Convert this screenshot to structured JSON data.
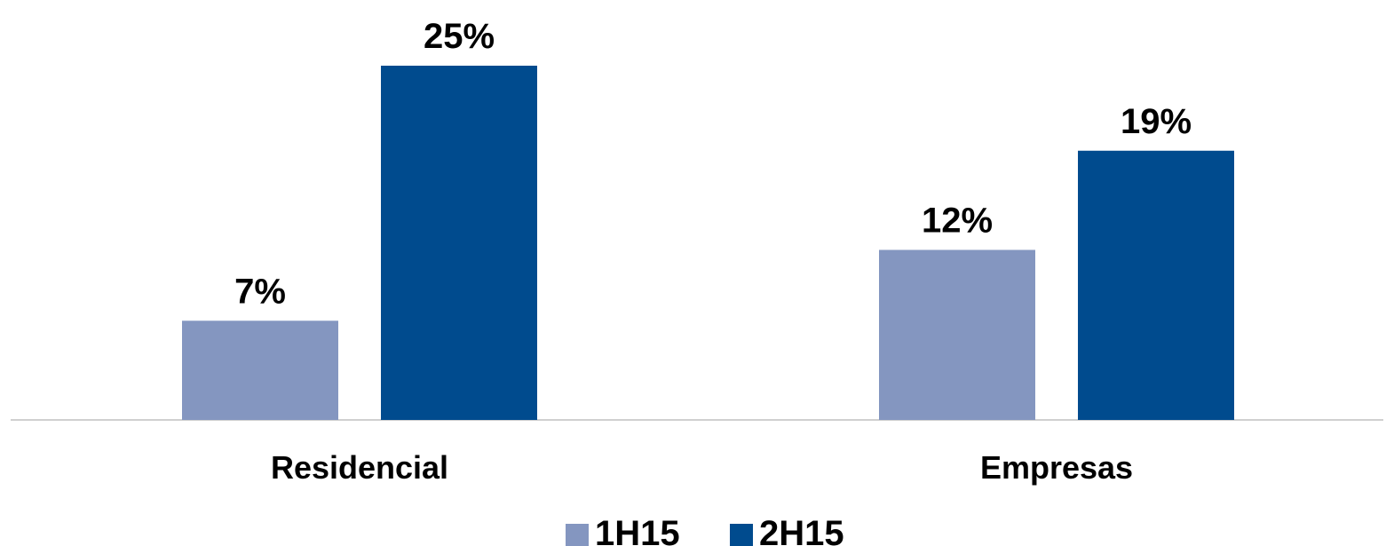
{
  "chart_data": {
    "type": "bar",
    "categories": [
      "Residencial",
      "Empresas"
    ],
    "series": [
      {
        "name": "1H15",
        "values": [
          7,
          12
        ],
        "labels": [
          "7%",
          "12%"
        ],
        "color": "#8496c0"
      },
      {
        "name": "2H15",
        "values": [
          25,
          19
        ],
        "labels": [
          "25%",
          "19%"
        ],
        "color": "#004b8e"
      }
    ],
    "value_suffix": "%",
    "ylim": [
      0,
      25
    ],
    "grid": false,
    "legend_position": "bottom-center",
    "axis_color": "#d0d0d0"
  }
}
